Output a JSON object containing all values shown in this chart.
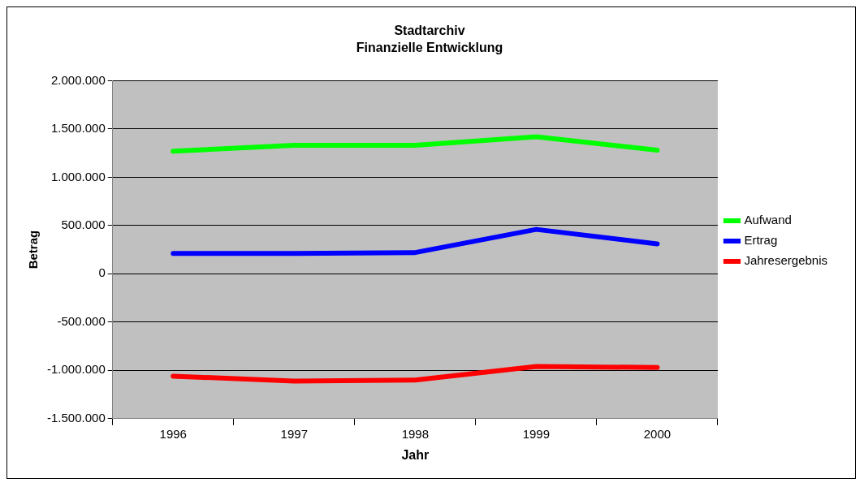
{
  "chart_data": {
    "type": "line",
    "title": "Stadtarchiv",
    "subtitle": "Finanzielle Entwicklung",
    "xlabel": "Jahr",
    "ylabel": "Betrag",
    "categories": [
      "1996",
      "1997",
      "1998",
      "1999",
      "2000"
    ],
    "series": [
      {
        "name": "Aufwand",
        "color": "#00ff00",
        "values": [
          1270000,
          1330000,
          1330000,
          1420000,
          1280000
        ]
      },
      {
        "name": "Ertrag",
        "color": "#0000ff",
        "values": [
          210000,
          210000,
          220000,
          460000,
          310000
        ]
      },
      {
        "name": "Jahresergebnis",
        "color": "#ff0000",
        "values": [
          -1060000,
          -1110000,
          -1100000,
          -960000,
          -970000
        ]
      }
    ],
    "ylim": [
      -1500000,
      2000000
    ],
    "yticks": [
      {
        "value": -1500000,
        "label": "-1.500.000"
      },
      {
        "value": -1000000,
        "label": "-1.000.000"
      },
      {
        "value": -500000,
        "label": "-500.000"
      },
      {
        "value": 0,
        "label": "0"
      },
      {
        "value": 500000,
        "label": "500.000"
      },
      {
        "value": 1000000,
        "label": "1.000.000"
      },
      {
        "value": 1500000,
        "label": "1.500.000"
      },
      {
        "value": 2000000,
        "label": "2.000.000"
      }
    ],
    "grid": "y",
    "legend": "right",
    "marker": "none",
    "line_style": "solid"
  }
}
